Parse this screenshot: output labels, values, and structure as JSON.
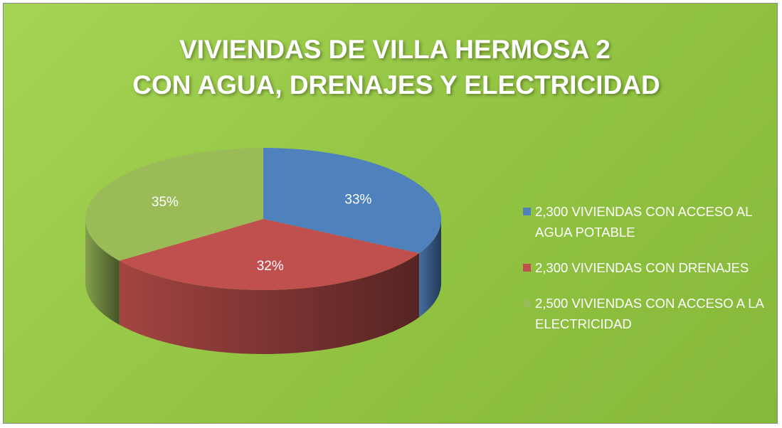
{
  "chart_data": {
    "type": "pie3d",
    "title": [
      "VIVIENDAS DE VILLA HERMOSA 2",
      "CON AGUA, DRENAJES Y ELECTRICIDAD"
    ],
    "categories": [
      "2,300 VIVIENDAS CON ACCESO AL AGUA POTABLE",
      "2,300 VIVIENDAS CON DRENAJES",
      "2,500 VIVIENDAS CON ACCESO A LA ELECTRICIDAD"
    ],
    "values": [
      33,
      32,
      35
    ],
    "value_labels": [
      "33%",
      "32%",
      "35%"
    ],
    "colors": [
      "#4f81bd",
      "#c0504d",
      "#9bbb59"
    ],
    "legend": "right"
  }
}
